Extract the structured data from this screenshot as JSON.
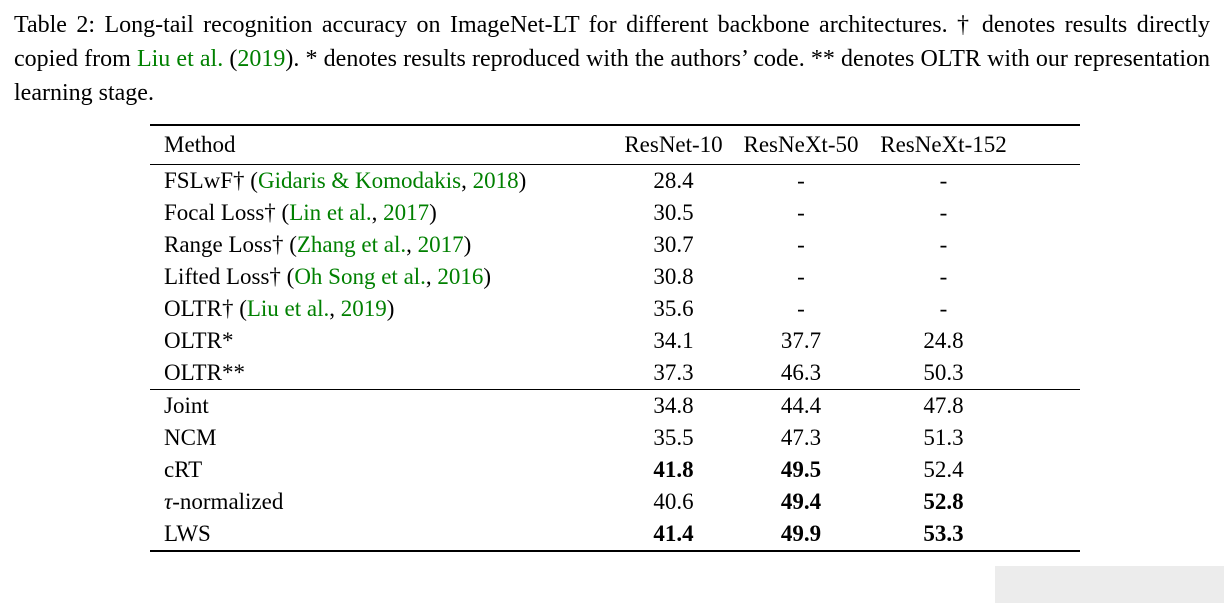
{
  "colors": {
    "citation_green": "#008000",
    "text": "#000000",
    "background": "#ffffff",
    "artifact_gray": "#ececec"
  },
  "caption": {
    "segments": [
      {
        "text": "Table 2: Long-tail recognition accuracy on ImageNet-LT for different backbone architectures. † denotes results directly copied from "
      },
      {
        "text": "Liu et al.",
        "link": true
      },
      {
        "text": " ("
      },
      {
        "text": "2019",
        "link": true
      },
      {
        "text": "). * denotes results reproduced with the authors’ code. ** denotes OLTR with our representation learning stage."
      }
    ]
  },
  "table": {
    "headers": [
      "Method",
      "ResNet-10",
      "ResNeXt-50",
      "ResNeXt-152"
    ],
    "groups": [
      {
        "name": "prior-methods",
        "rows": [
          {
            "method": [
              {
                "t": "FSLwF† ("
              },
              {
                "t": "Gidaris & Komodakis",
                "link": true
              },
              {
                "t": ", "
              },
              {
                "t": "2018",
                "link": true
              },
              {
                "t": ")"
              }
            ],
            "values": [
              {
                "v": "28.4"
              },
              {
                "v": "-"
              },
              {
                "v": "-"
              }
            ]
          },
          {
            "method": [
              {
                "t": "Focal Loss† ("
              },
              {
                "t": "Lin et al.",
                "link": true
              },
              {
                "t": ", "
              },
              {
                "t": "2017",
                "link": true
              },
              {
                "t": ")"
              }
            ],
            "values": [
              {
                "v": "30.5"
              },
              {
                "v": "-"
              },
              {
                "v": "-"
              }
            ]
          },
          {
            "method": [
              {
                "t": "Range Loss† ("
              },
              {
                "t": "Zhang et al.",
                "link": true
              },
              {
                "t": ", "
              },
              {
                "t": "2017",
                "link": true
              },
              {
                "t": ")"
              }
            ],
            "values": [
              {
                "v": "30.7"
              },
              {
                "v": "-"
              },
              {
                "v": "-"
              }
            ]
          },
          {
            "method": [
              {
                "t": "Lifted Loss† ("
              },
              {
                "t": "Oh Song et al.",
                "link": true
              },
              {
                "t": ", "
              },
              {
                "t": "2016",
                "link": true
              },
              {
                "t": ")"
              }
            ],
            "values": [
              {
                "v": "30.8"
              },
              {
                "v": "-"
              },
              {
                "v": "-"
              }
            ]
          },
          {
            "method": [
              {
                "t": "OLTR† ("
              },
              {
                "t": "Liu et al.",
                "link": true
              },
              {
                "t": ", "
              },
              {
                "t": "2019",
                "link": true
              },
              {
                "t": ")"
              }
            ],
            "values": [
              {
                "v": "35.6"
              },
              {
                "v": "-"
              },
              {
                "v": "-"
              }
            ]
          },
          {
            "method": [
              {
                "t": "OLTR*"
              }
            ],
            "values": [
              {
                "v": "34.1"
              },
              {
                "v": "37.7"
              },
              {
                "v": "24.8"
              }
            ]
          },
          {
            "method": [
              {
                "t": "OLTR**"
              }
            ],
            "values": [
              {
                "v": "37.3"
              },
              {
                "v": "46.3"
              },
              {
                "v": "50.3"
              }
            ]
          }
        ]
      },
      {
        "name": "our-methods",
        "rows": [
          {
            "method": [
              {
                "t": "Joint"
              }
            ],
            "values": [
              {
                "v": "34.8"
              },
              {
                "v": "44.4"
              },
              {
                "v": "47.8"
              }
            ]
          },
          {
            "method": [
              {
                "t": "NCM"
              }
            ],
            "values": [
              {
                "v": "35.5"
              },
              {
                "v": "47.3"
              },
              {
                "v": "51.3"
              }
            ]
          },
          {
            "method": [
              {
                "t": "cRT"
              }
            ],
            "values": [
              {
                "v": "41.8",
                "bold": true
              },
              {
                "v": "49.5",
                "bold": true
              },
              {
                "v": "52.4"
              }
            ]
          },
          {
            "method": [
              {
                "t": "τ",
                "italic": true
              },
              {
                "t": "-normalized"
              }
            ],
            "values": [
              {
                "v": "40.6"
              },
              {
                "v": "49.4",
                "bold": true
              },
              {
                "v": "52.8",
                "bold": true
              }
            ]
          },
          {
            "method": [
              {
                "t": "LWS"
              }
            ],
            "values": [
              {
                "v": "41.4",
                "bold": true
              },
              {
                "v": "49.9",
                "bold": true
              },
              {
                "v": "53.3",
                "bold": true
              }
            ]
          }
        ]
      }
    ]
  }
}
